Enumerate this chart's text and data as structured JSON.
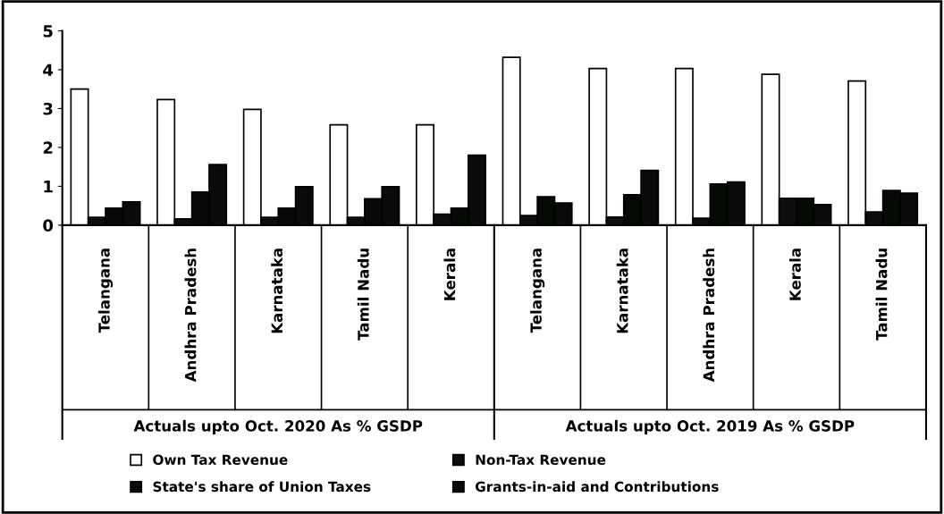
{
  "chart_data": {
    "type": "bar",
    "categories": [
      "Telangana",
      "Andhra Pradesh",
      "Karnataka",
      "Tamil Nadu",
      "Kerala",
      "Telangana",
      "Karnataka",
      "Andhra Pradesh",
      "Kerala",
      "Tamil Nadu"
    ],
    "series": [
      {
        "name": "Own Tax Revenue",
        "color": "#ffffff",
        "values": [
          3.5,
          3.23,
          2.98,
          2.58,
          2.58,
          4.32,
          4.03,
          4.03,
          3.88,
          3.71
        ]
      },
      {
        "name": "Non-Tax Revenue",
        "color": "#0d0d0d",
        "values": [
          0.2,
          0.16,
          0.2,
          0.2,
          0.28,
          0.25,
          0.21,
          0.18,
          0.69,
          0.34
        ]
      },
      {
        "name": "State's share of Union Taxes",
        "color": "#050a05",
        "values": [
          0.44,
          0.85,
          0.44,
          0.68,
          0.44,
          0.73,
          0.78,
          1.06,
          0.69,
          0.89
        ]
      },
      {
        "name": "Grants-in-aid and Contributions",
        "color": "#0a0a0a",
        "values": [
          0.6,
          1.56,
          0.99,
          0.99,
          1.8,
          0.57,
          1.41,
          1.11,
          0.53,
          0.82
        ]
      }
    ],
    "annotations": [
      "Actuals upto Oct. 2020 As % GSDP",
      "Actuals upto Oct. 2019 As % GSDP"
    ],
    "ylim": [
      0,
      5
    ],
    "yticks": [
      0,
      1,
      2,
      3,
      4,
      5
    ],
    "grid": false,
    "legend": "bottom"
  }
}
